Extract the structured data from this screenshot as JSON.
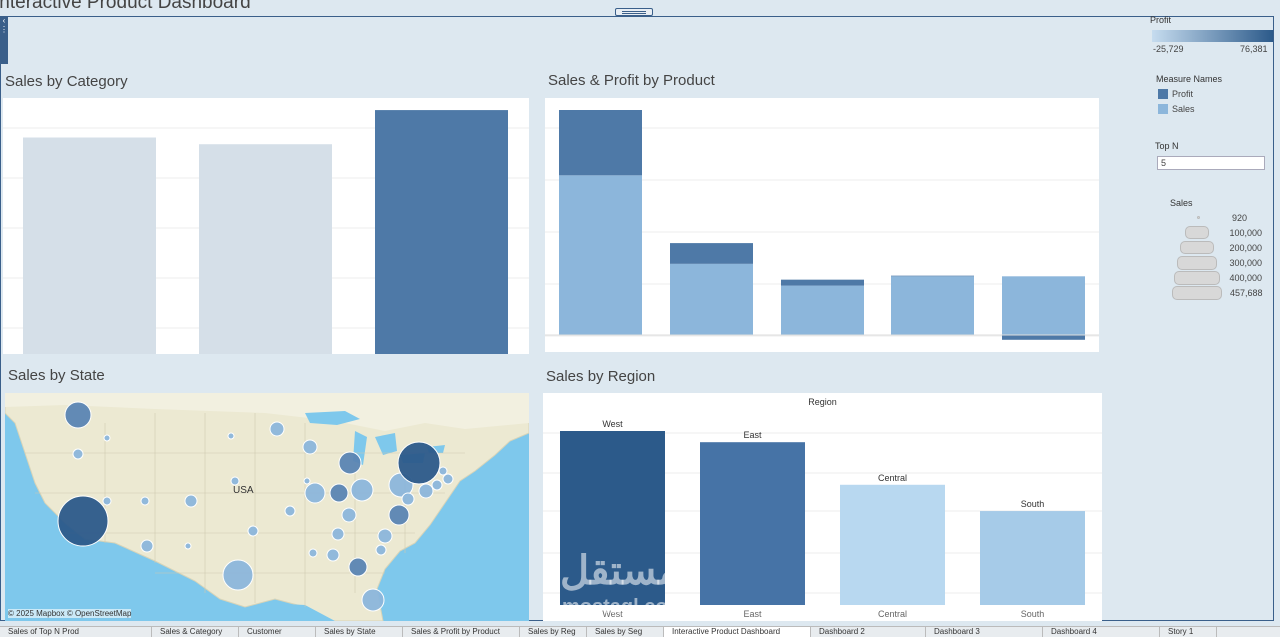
{
  "dashboard": {
    "title": "Interactive Product Dashboard"
  },
  "sheets": {
    "category": {
      "title": "Sales by Category"
    },
    "product": {
      "title": "Sales & Profit by Product"
    },
    "state": {
      "title": "Sales by State",
      "map_label": "USA",
      "attribution": "© 2025 Mapbox © OpenStreetMap"
    },
    "region": {
      "title": "Sales by Region",
      "header": "Region"
    }
  },
  "legends": {
    "profit": {
      "title": "Profit",
      "min": "-25,729",
      "max": "76,381",
      "color_low": "#c6dcef",
      "color_high": "#2c5a8a"
    },
    "measure_names": {
      "title": "Measure Names",
      "items": [
        {
          "label": "Profit",
          "color": "#4e79a7"
        },
        {
          "label": "Sales",
          "color": "#8cb6db"
        }
      ]
    },
    "top_n": {
      "title": "Top N",
      "value": "5"
    },
    "sales_size": {
      "title": "Sales",
      "items": [
        "920",
        "100,000",
        "200,000",
        "300,000",
        "400,000",
        "457,688"
      ]
    }
  },
  "chart_data": [
    {
      "type": "bar",
      "name": "category",
      "title": "Sales by Category",
      "categories": [
        "",
        "",
        ""
      ],
      "values": [
        742000,
        719000,
        836000
      ],
      "colors": [
        "#d5dfe8",
        "#d5dfe8",
        "#4e79a7"
      ],
      "ylim": [
        0,
        850000
      ]
    },
    {
      "type": "bar",
      "name": "product",
      "title": "Sales & Profit by Product",
      "stacked": true,
      "categories": [
        "",
        "",
        "",
        "",
        ""
      ],
      "series": [
        {
          "name": "Sales",
          "color": "#8cb6db",
          "values": [
            61600,
            27450,
            19050,
            22640,
            22640
          ]
        },
        {
          "name": "Profit",
          "color": "#4e79a7",
          "values": [
            25200,
            8000,
            2300,
            250,
            -1850
          ]
        }
      ],
      "ylim": [
        -3000,
        90000
      ]
    },
    {
      "type": "bar",
      "name": "region",
      "title": "Sales by Region",
      "categories": [
        "West",
        "East",
        "Central",
        "South"
      ],
      "values": [
        725458,
        678781,
        501240,
        391722
      ],
      "colors": [
        "#2c5a8a",
        "#4673a6",
        "#b8d8f0",
        "#a6cbe8"
      ],
      "ylim": [
        0,
        850000
      ]
    }
  ],
  "tabs": [
    {
      "label": "Sales of Top N Prod"
    },
    {
      "label": "Sales & Category"
    },
    {
      "label": "Customer"
    },
    {
      "label": "Sales by State"
    },
    {
      "label": "Sales & Profit by Product"
    },
    {
      "label": "Sales by Reg"
    },
    {
      "label": "Sales by Seg"
    },
    {
      "label": "Interactive Product Dashboard"
    },
    {
      "label": "Dashboard 2"
    },
    {
      "label": "Dashboard 3"
    },
    {
      "label": "Dashboard 4"
    },
    {
      "label": "Story 1"
    }
  ]
}
